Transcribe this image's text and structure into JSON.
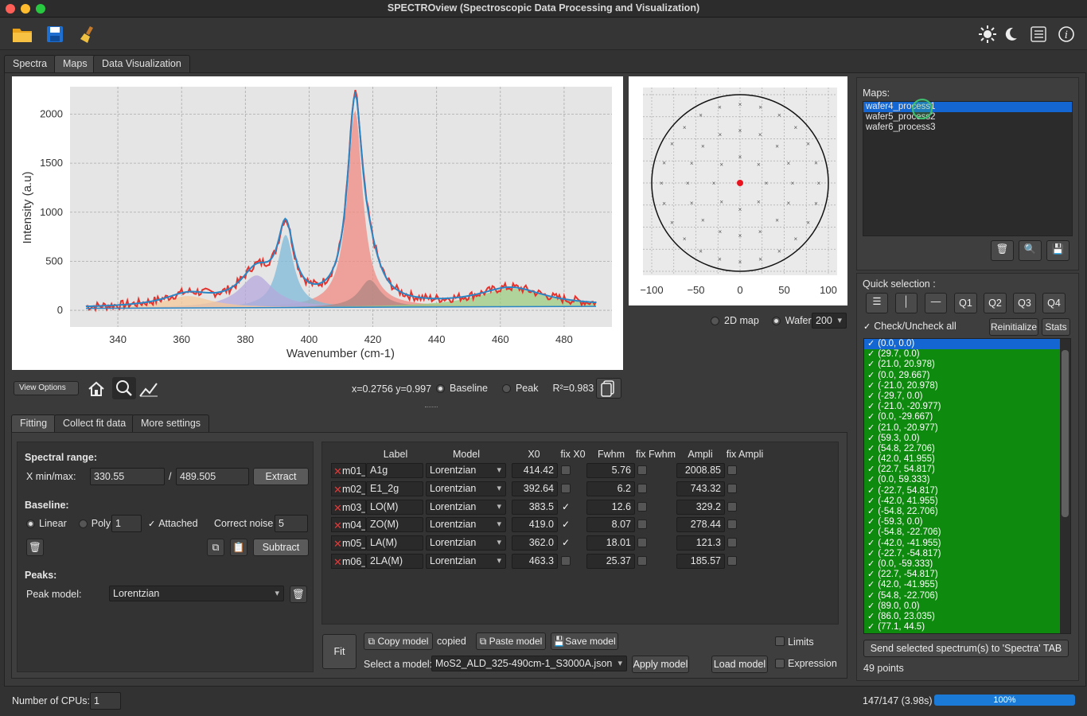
{
  "window": {
    "title": "SPECTROview (Spectroscopic Data Processing and Visualization)"
  },
  "tabs": [
    "Spectra",
    "Maps",
    "Data Visualization"
  ],
  "plot": {
    "ylabel": "Intensity (a.u)",
    "xlabel": "Wavenumber (cm-1)",
    "xticks": [
      "340",
      "360",
      "380",
      "400",
      "420",
      "440",
      "460",
      "480"
    ],
    "yticks": [
      "0",
      "500",
      "1000",
      "1500",
      "2000"
    ]
  },
  "chart_data": {
    "type": "line",
    "title": "",
    "xlabel": "Wavenumber (cm-1)",
    "ylabel": "Intensity (a.u)",
    "xlim": [
      325,
      495
    ],
    "ylim": [
      -170,
      2280
    ],
    "peaks": [
      {
        "label": "A1g",
        "x0": 414.42,
        "fwhm": 5.76,
        "ampli": 2008.85,
        "color": "#f08a80"
      },
      {
        "label": "E1_2g",
        "x0": 392.64,
        "fwhm": 6.2,
        "ampli": 743.32,
        "color": "#7db9d8"
      },
      {
        "label": "LO(M)",
        "x0": 383.5,
        "fwhm": 12.6,
        "ampli": 329.2,
        "color": "#b6a8dc"
      },
      {
        "label": "ZO(M)",
        "x0": 419.0,
        "fwhm": 8.07,
        "ampli": 278.44,
        "color": "#b08680"
      },
      {
        "label": "LA(M)",
        "x0": 362.0,
        "fwhm": 18.01,
        "ampli": 121.3,
        "color": "#f4c89a"
      },
      {
        "label": "2LA(M)",
        "x0": 463.3,
        "fwhm": 25.37,
        "ampli": 185.57,
        "color": "#9ccc80"
      }
    ],
    "baseline": [
      [
        330,
        20
      ],
      [
        490,
        40
      ]
    ],
    "raw_color": "#e5322d",
    "fit_color": "#2b86c6"
  },
  "wafer": {
    "xticks": [
      "−100",
      "−50",
      "0",
      "50",
      "100"
    ],
    "points": [
      [
        0,
        0
      ],
      [
        29.7,
        0
      ],
      [
        21,
        20.978
      ],
      [
        0,
        29.667
      ],
      [
        -21,
        20.978
      ],
      [
        -29.7,
        0
      ],
      [
        -21,
        -20.977
      ],
      [
        0,
        -29.667
      ],
      [
        21,
        -20.977
      ],
      [
        59.3,
        0
      ],
      [
        54.8,
        22.706
      ],
      [
        42,
        41.955
      ],
      [
        22.7,
        54.817
      ],
      [
        0,
        59.333
      ],
      [
        -22.7,
        54.817
      ],
      [
        -42,
        41.955
      ],
      [
        -54.8,
        22.706
      ],
      [
        -59.3,
        0
      ],
      [
        -54.8,
        -22.706
      ],
      [
        -42,
        -41.955
      ],
      [
        -22.7,
        -54.817
      ],
      [
        0,
        -59.333
      ],
      [
        22.7,
        -54.817
      ],
      [
        42,
        -41.955
      ],
      [
        54.8,
        -22.706
      ],
      [
        89,
        0
      ],
      [
        86,
        23.035
      ],
      [
        77.1,
        44.5
      ],
      [
        62.9,
        62.9
      ],
      [
        44.5,
        77.1
      ],
      [
        23,
        86
      ],
      [
        0,
        89
      ],
      [
        -23,
        86
      ],
      [
        -44.5,
        77.1
      ],
      [
        -62.9,
        62.9
      ],
      [
        -77.1,
        44.5
      ],
      [
        -86,
        23
      ],
      [
        -89,
        0
      ],
      [
        -86,
        -23
      ],
      [
        -77.1,
        -44.5
      ],
      [
        -62.9,
        -62.9
      ],
      [
        -44.5,
        -77.1
      ],
      [
        -23,
        -86
      ],
      [
        0,
        -89
      ],
      [
        23,
        -86
      ],
      [
        44.5,
        -77.1
      ],
      [
        62.9,
        -62.9
      ],
      [
        77.1,
        -44.5
      ],
      [
        86,
        -23
      ]
    ]
  },
  "plot_toolbar": {
    "view_options": "View Options",
    "coords": "x=0.2756 y=0.997",
    "baseline": "Baseline",
    "peak": "Peak",
    "r2": "R²=0.983"
  },
  "map_opts": {
    "map2d": "2D map",
    "wafer": "Wafer",
    "size": "200"
  },
  "bottom_tabs": [
    "Fitting",
    "Collect fit data",
    "More settings"
  ],
  "fitting": {
    "spectral_range": "Spectral range:",
    "xminmax": "X min/max:",
    "xmin": "330.55",
    "sep": "/",
    "xmax": "489.505",
    "extract": "Extract",
    "baseline": "Baseline:",
    "linear": "Linear",
    "poly": "Poly",
    "poly_val": "1",
    "attached": "Attached",
    "correct_noise": "Correct noise",
    "noise_val": "5",
    "subtract": "Subtract",
    "peaks": "Peaks:",
    "peak_model_lbl": "Peak model:",
    "peak_model": "Lorentzian"
  },
  "peak_table": {
    "headers": [
      "Label",
      "Model",
      "X0",
      "fix X0",
      "Fwhm",
      "fix Fwhm",
      "Ampli",
      "fix Ampli"
    ],
    "rows": [
      {
        "id": "m01_",
        "label": "A1g",
        "model": "Lorentzian",
        "x0": "414.42",
        "fx": false,
        "fwhm": "5.76",
        "ampli": "2008.85"
      },
      {
        "id": "m02_",
        "label": "E1_2g",
        "model": "Lorentzian",
        "x0": "392.64",
        "fx": false,
        "fwhm": "6.2",
        "ampli": "743.32"
      },
      {
        "id": "m03_",
        "label": "LO(M)",
        "model": "Lorentzian",
        "x0": "383.5",
        "fx": true,
        "fwhm": "12.6",
        "ampli": "329.2"
      },
      {
        "id": "m04_",
        "label": "ZO(M)",
        "model": "Lorentzian",
        "x0": "419.0",
        "fx": true,
        "fwhm": "8.07",
        "ampli": "278.44"
      },
      {
        "id": "m05_",
        "label": "LA(M)",
        "model": "Lorentzian",
        "x0": "362.0",
        "fx": true,
        "fwhm": "18.01",
        "ampli": "121.3"
      },
      {
        "id": "m06_",
        "label": "2LA(M)",
        "model": "Lorentzian",
        "x0": "463.3",
        "fx": false,
        "fwhm": "25.37",
        "ampli": "185.57"
      }
    ]
  },
  "model_bar": {
    "fit": "Fit",
    "copy": "Copy model",
    "copied": "copied",
    "paste": "Paste model",
    "save": "Save model",
    "select_lbl": "Select a model:",
    "model_file": "MoS2_ALD_325-490cm-1_S3000A.json",
    "apply": "Apply model",
    "load": "Load model",
    "limits": "Limits",
    "expression": "Expression"
  },
  "maps": {
    "title": "Maps:",
    "items": [
      "wafer4_process1",
      "wafer5_process2",
      "wafer6_process3"
    ]
  },
  "quick": {
    "title": "Quick selection :",
    "q": [
      "Q1",
      "Q2",
      "Q3",
      "Q4"
    ],
    "check_all": "Check/Uncheck all",
    "reinit": "Reinitialize",
    "stats": "Stats"
  },
  "points": [
    "(0.0, 0.0)",
    "(29.7, 0.0)",
    "(21.0, 20.978)",
    "(0.0, 29.667)",
    "(-21.0, 20.978)",
    "(-29.7, 0.0)",
    "(-21.0, -20.977)",
    "(0.0, -29.667)",
    "(21.0, -20.977)",
    "(59.3, 0.0)",
    "(54.8, 22.706)",
    "(42.0, 41.955)",
    "(22.7, 54.817)",
    "(0.0, 59.333)",
    "(-22.7, 54.817)",
    "(-42.0, 41.955)",
    "(-54.8, 22.706)",
    "(-59.3, 0.0)",
    "(-54.8, -22.706)",
    "(-42.0, -41.955)",
    "(-22.7, -54.817)",
    "(0.0, -59.333)",
    "(22.7, -54.817)",
    "(42.0, -41.955)",
    "(54.8, -22.706)",
    "(89.0, 0.0)",
    "(86.0, 23.035)",
    "(77.1, 44.5)"
  ],
  "send_btn": "Send selected spectrum(s) to 'Spectra' TAB",
  "points_count": "49 points",
  "status": {
    "cpus_lbl": "Number of CPUs:",
    "cpus": "1",
    "progress_text": "147/147 (3.98s)",
    "progress": 1.0,
    "progress_pct": "100%"
  }
}
